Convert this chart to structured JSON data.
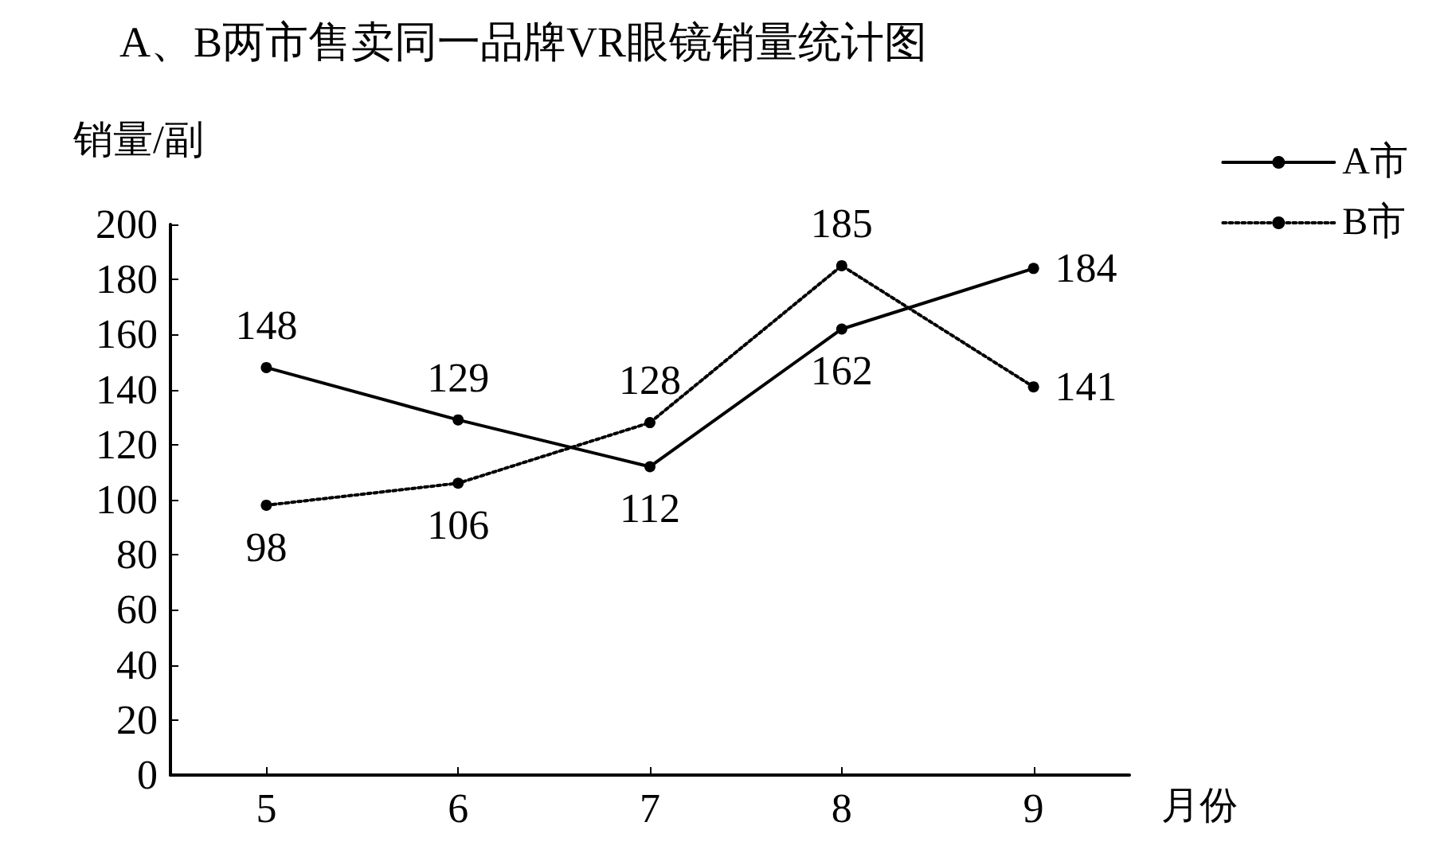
{
  "chart_data": {
    "type": "line",
    "title": "A、B两市售卖同一品牌VR眼镜销量统计图",
    "xlabel": "月份",
    "ylabel": "销量/副",
    "categories": [
      "5",
      "6",
      "7",
      "8",
      "9"
    ],
    "series": [
      {
        "name": "A市",
        "color": "#000000",
        "line_style": "solid",
        "values": [
          148,
          129,
          112,
          162,
          184
        ]
      },
      {
        "name": "B市",
        "color": "#000000",
        "line_style": "dotted",
        "values": [
          98,
          106,
          128,
          185,
          141
        ]
      }
    ],
    "ylim": [
      0,
      200
    ],
    "yticks": [
      0,
      20,
      40,
      60,
      80,
      100,
      120,
      140,
      160,
      180,
      200
    ],
    "grid": false,
    "legend": "top right",
    "marker": "circle",
    "data_labels": true
  }
}
